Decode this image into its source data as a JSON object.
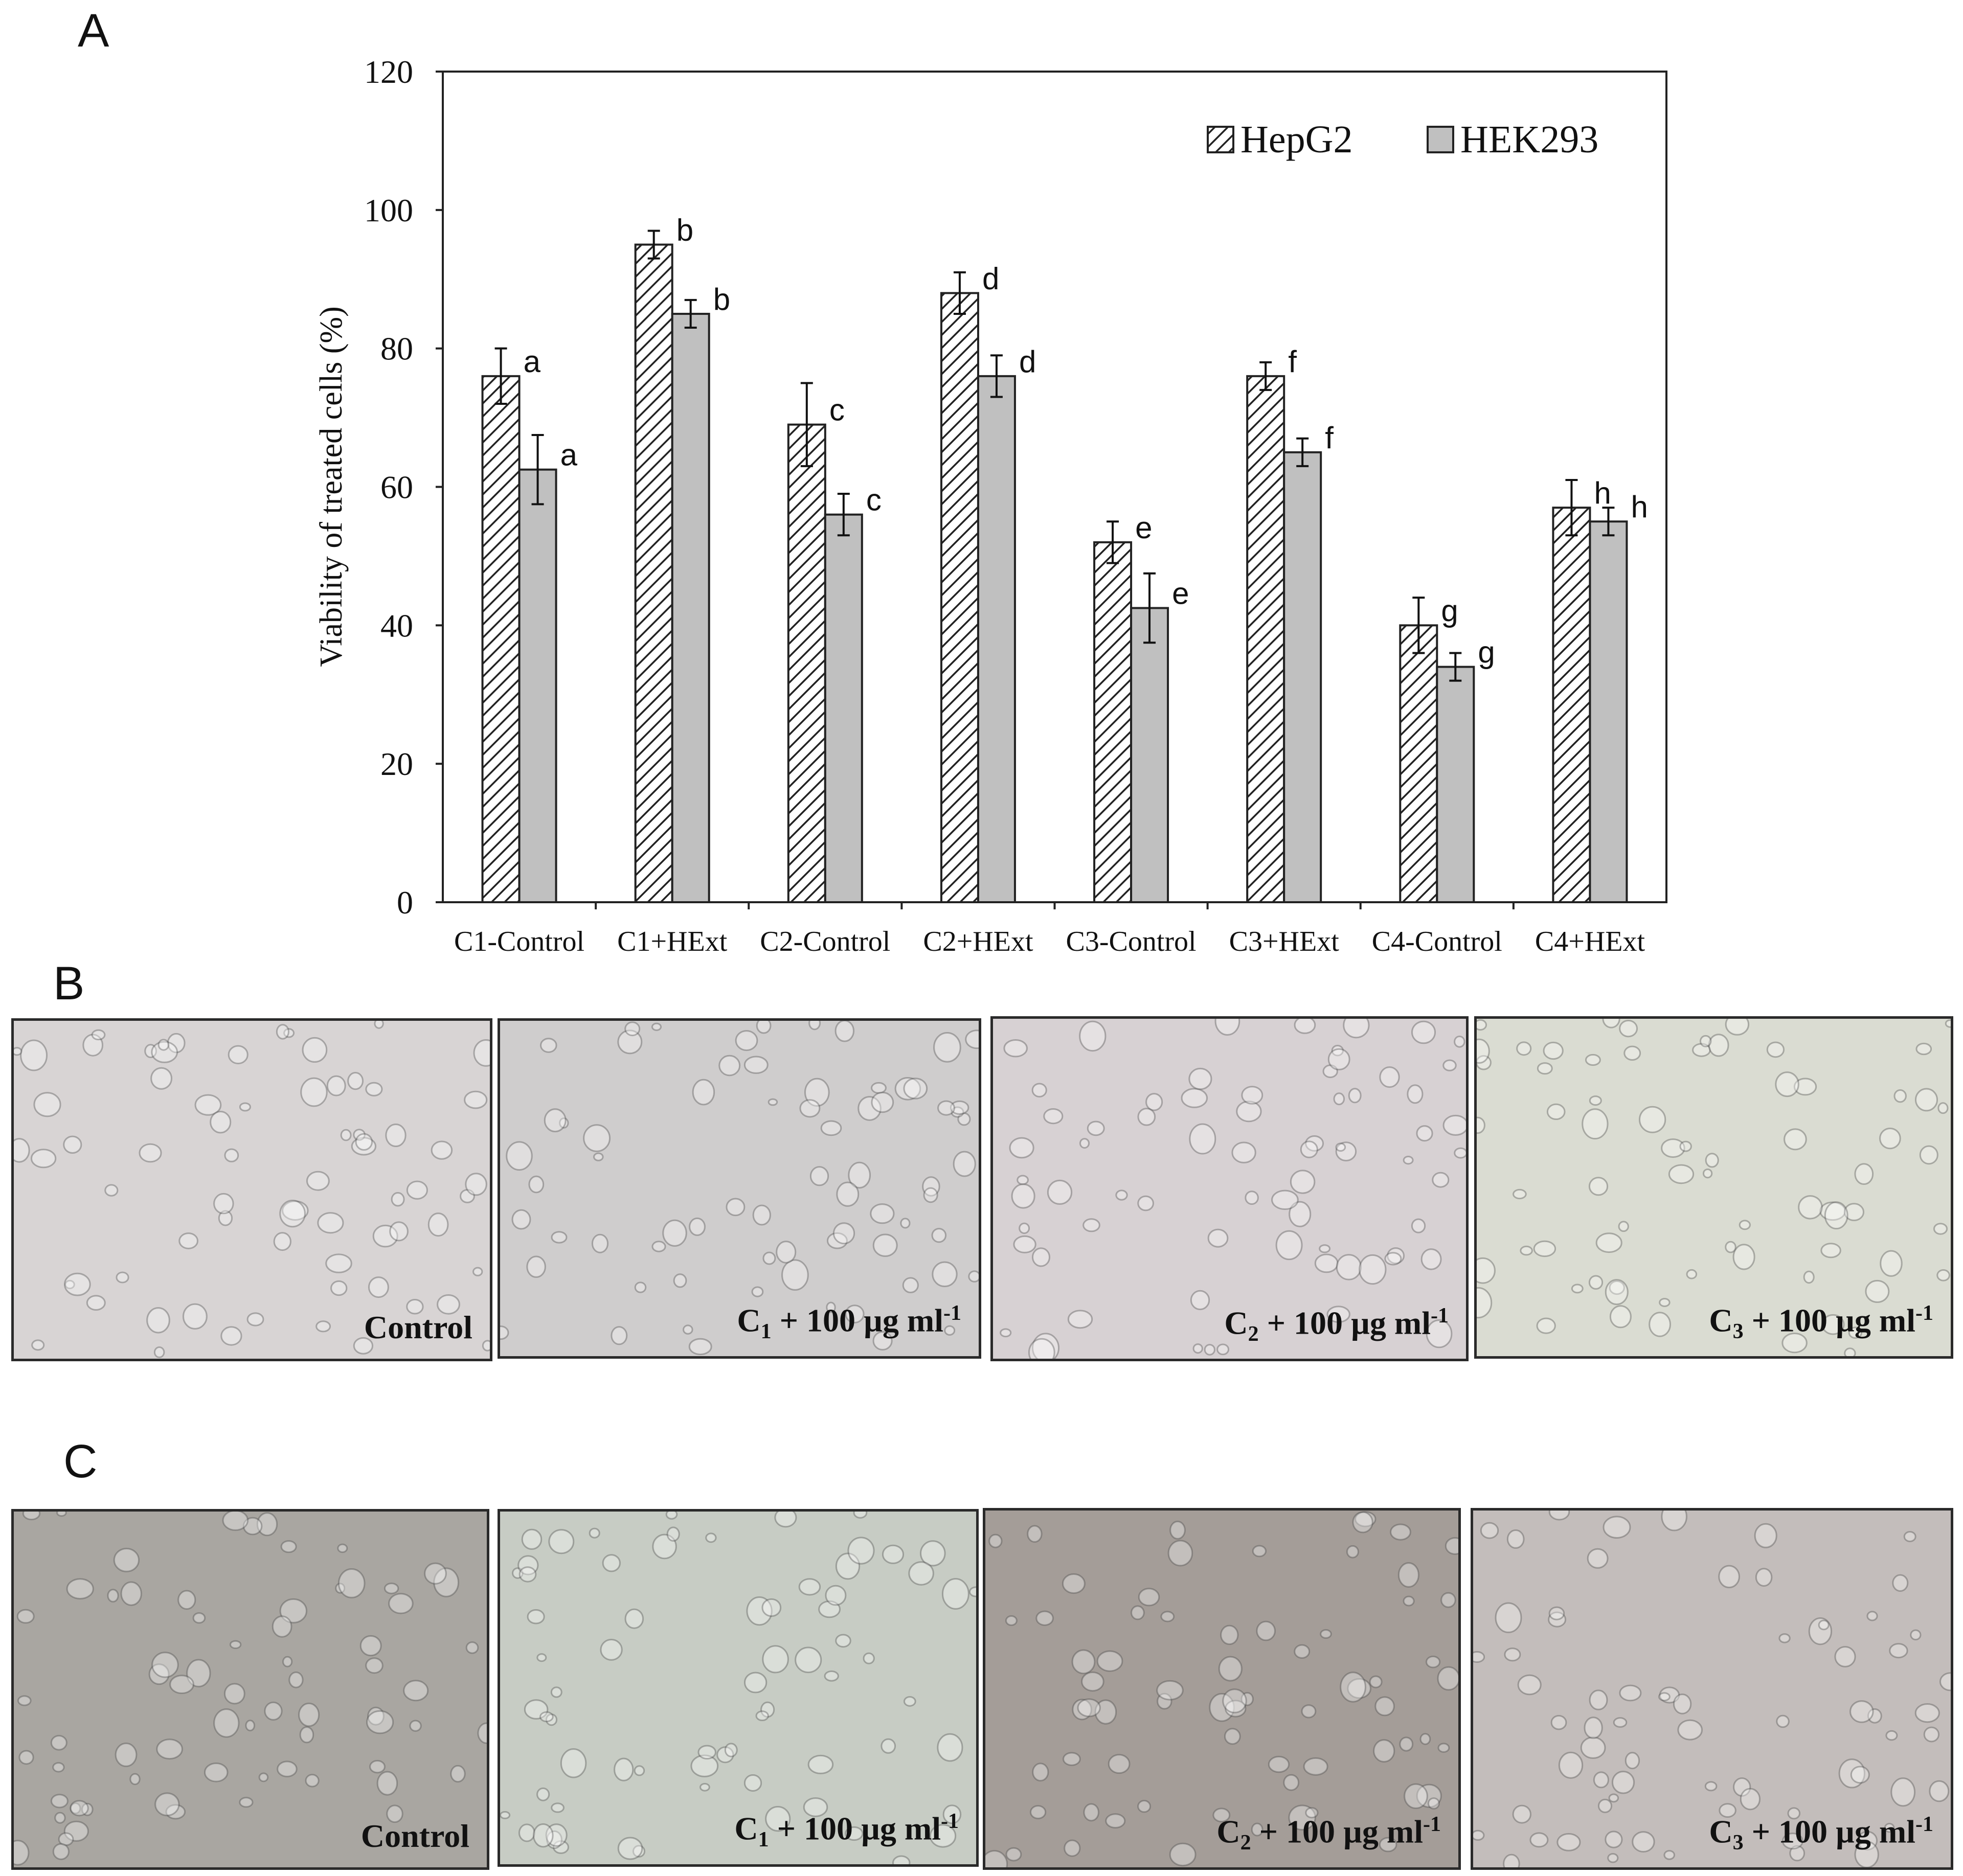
{
  "panels": {
    "a": "A",
    "b": "B",
    "c": "C"
  },
  "chart_data": {
    "type": "bar",
    "categories": [
      "C1-Control",
      "C1+HExt",
      "C2-Control",
      "C2+HExt",
      "C3-Control",
      "C3+HExt",
      "C4-Control",
      "C4+HExt"
    ],
    "series": [
      {
        "name": "HepG2",
        "pattern": "hatched",
        "color": "#ffffff",
        "values": [
          76,
          95,
          69,
          88,
          52,
          76,
          40,
          57
        ],
        "errors": [
          4,
          2,
          6,
          3,
          3,
          2,
          4,
          4
        ],
        "letters": [
          "a",
          "b",
          "c",
          "d",
          "e",
          "f",
          "g",
          "h"
        ]
      },
      {
        "name": "HEK293",
        "pattern": "solid",
        "color": "#c0c0c0",
        "values": [
          62.5,
          85,
          56,
          76,
          42.5,
          65,
          34,
          55
        ],
        "errors": [
          5,
          2,
          3,
          3,
          5,
          2,
          2,
          2
        ],
        "letters": [
          "a",
          "b",
          "c",
          "d",
          "e",
          "f",
          "g",
          "h"
        ]
      }
    ],
    "ylabel": "Viability of treated cells (%)",
    "xlabel": "",
    "ylim": [
      0,
      120
    ],
    "yticks": [
      0,
      20,
      40,
      60,
      80,
      100,
      120
    ],
    "legend": "top-right",
    "grid": false
  },
  "micrographs": {
    "row_b": [
      {
        "main": "Control",
        "sub": "",
        "rest": "",
        "sup": ""
      },
      {
        "main": "C",
        "sub": "1",
        "rest": " + 100 µg ml",
        "sup": "-1"
      },
      {
        "main": "C",
        "sub": "2",
        "rest": " + 100 µg ml",
        "sup": "-1"
      },
      {
        "main": "C",
        "sub": "3",
        "rest": " + 100 µg ml",
        "sup": "-1"
      }
    ],
    "row_c": [
      {
        "main": "Control",
        "sub": "",
        "rest": "",
        "sup": ""
      },
      {
        "main": "C",
        "sub": "1",
        "rest": " + 100 µg ml",
        "sup": "-1"
      },
      {
        "main": "C",
        "sub": "2",
        "rest": " + 100 µg ml",
        "sup": "-1"
      },
      {
        "main": "C",
        "sub": "3",
        "rest": " + 100 µg ml",
        "sup": "-1"
      }
    ],
    "colors": {
      "row_b": [
        "#d8d4d4",
        "#cfcdcd",
        "#d7d1d3",
        "#dadcd2"
      ],
      "row_c": [
        "#a9a6a1",
        "#c7ccc4",
        "#a49d98",
        "#c3bdbb"
      ]
    }
  }
}
